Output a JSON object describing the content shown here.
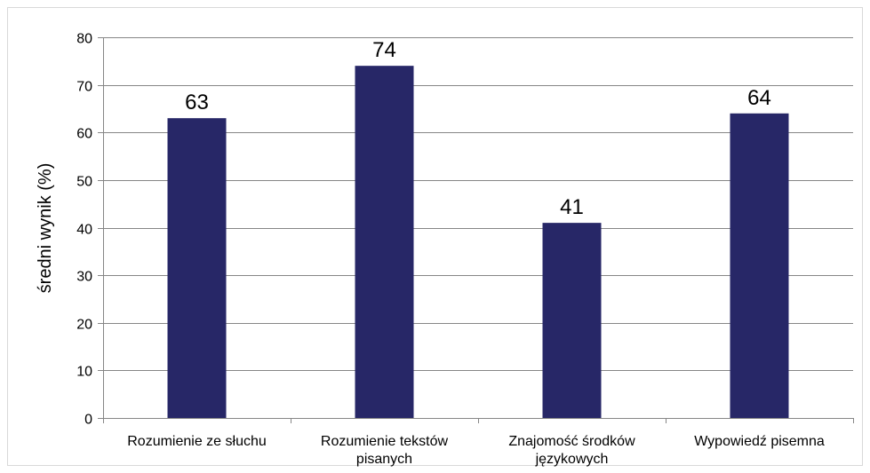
{
  "chart_data": {
    "type": "bar",
    "categories": [
      [
        "Rozumienie ze słuchu"
      ],
      [
        "Rozumienie tekstów",
        "pisanych"
      ],
      [
        "Znajomość środków",
        "językowych"
      ],
      [
        "Wypowiedź pisemna"
      ]
    ],
    "values": [
      63,
      74,
      41,
      64
    ],
    "data_labels": [
      "63",
      "74",
      "41",
      "64"
    ],
    "ylabel": "średni wynik (%)",
    "ylim": [
      0,
      80
    ],
    "yticks": [
      0,
      10,
      20,
      30,
      40,
      50,
      60,
      70,
      80
    ],
    "grid": true,
    "legend": "none",
    "colors": {
      "bar": "#272767",
      "grid": "#868686",
      "axis": "#868686",
      "frame": "#d9d9d9"
    }
  }
}
